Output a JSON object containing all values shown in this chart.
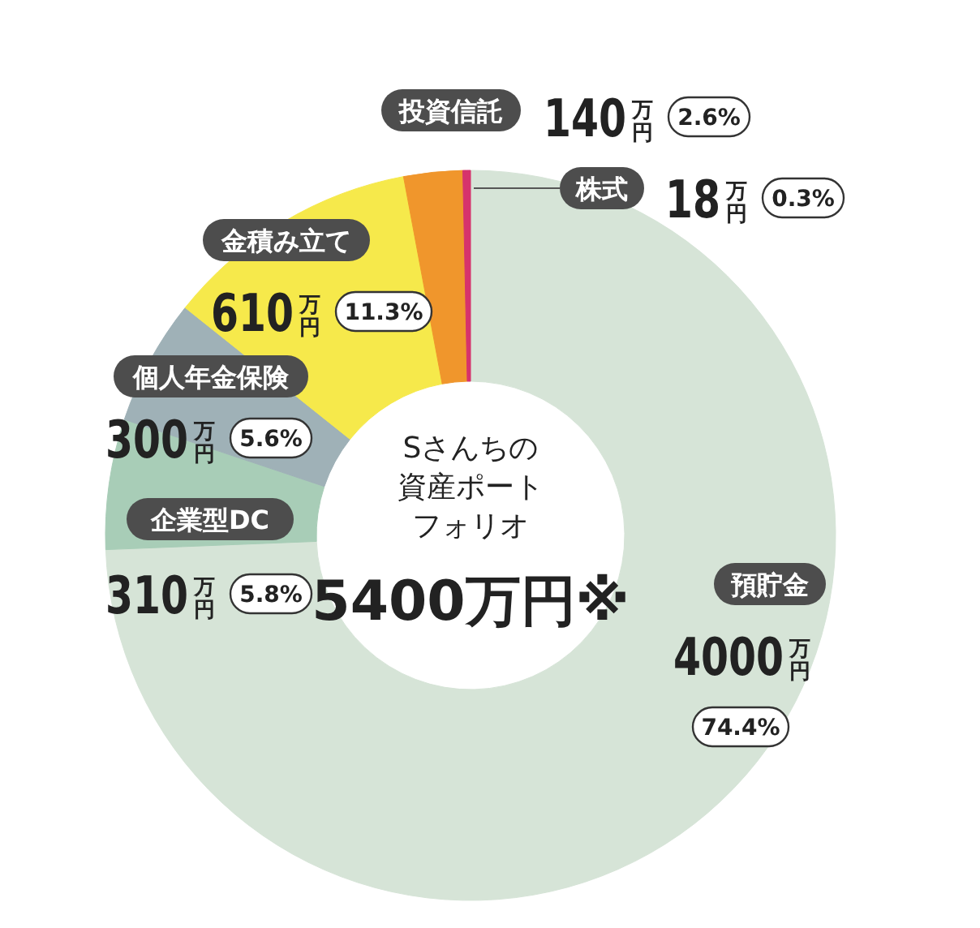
{
  "chart_data": {
    "type": "donut",
    "title": "Sさんちの資産ポートフォリオ",
    "subtitle": "5400万円※",
    "categories": [
      "預貯金",
      "企業型DC",
      "個人年金保険",
      "金積み立て",
      "投資信託",
      "株式"
    ],
    "values": [
      4000,
      310,
      300,
      610,
      140,
      18
    ],
    "colors": [
      "#d6e4d7",
      "#a8cdb7",
      "#9fb1b7",
      "#f6e94b",
      "#f0962c",
      "#d6336c"
    ],
    "value_labels": [
      "4000万円 74.4%",
      "310万円 5.8%",
      "300万円 5.6%",
      "610万円 11.3%",
      "140万円 2.6%",
      "18万円 0.3%"
    ]
  }
}
